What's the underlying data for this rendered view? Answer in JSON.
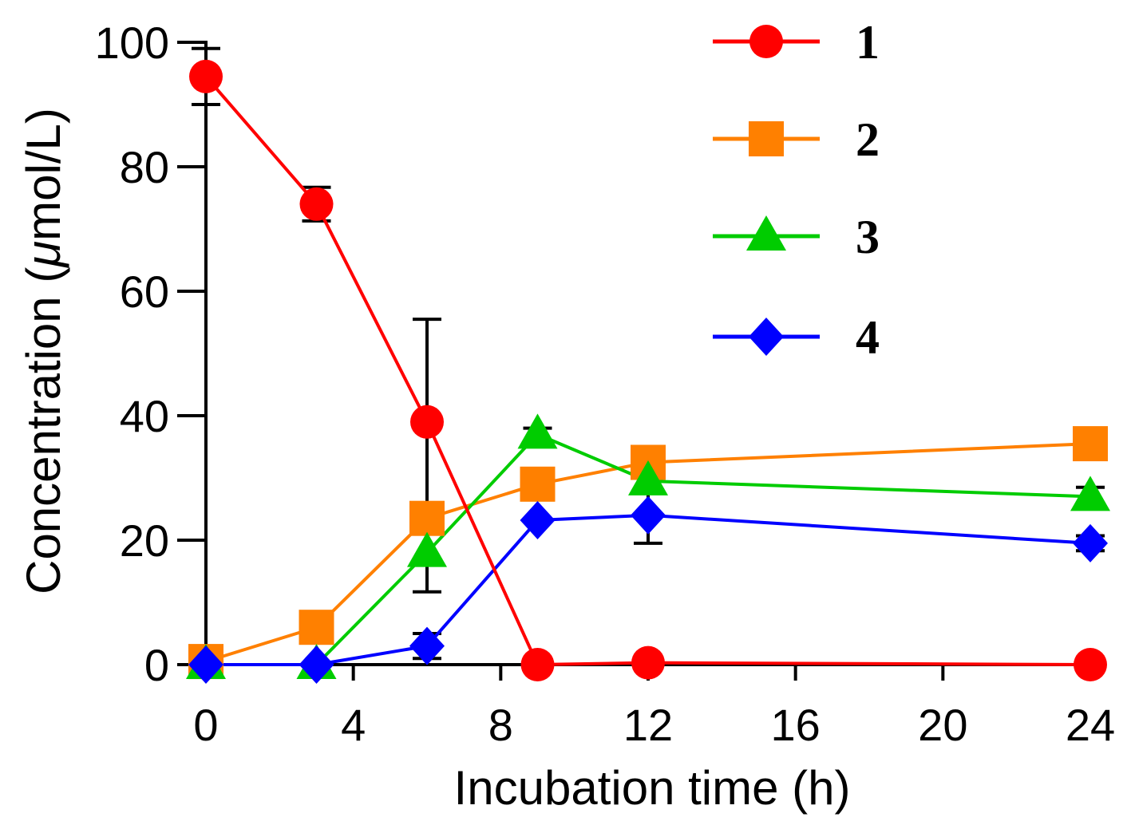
{
  "chart_data": {
    "type": "line",
    "title": "",
    "xlabel": "Incubation time (h)",
    "ylabel_parts": [
      "Concentration (",
      "μ",
      "mol/L)"
    ],
    "xlim": [
      0,
      24
    ],
    "ylim": [
      0,
      100
    ],
    "xticks": [
      0,
      4,
      8,
      12,
      16,
      20,
      24
    ],
    "yticks": [
      0,
      20,
      40,
      60,
      80,
      100
    ],
    "grid": false,
    "legend_position": "top-right",
    "series": [
      {
        "name": "1",
        "color": "#ff0000",
        "marker": "circle",
        "x": [
          0,
          3,
          6,
          9,
          12,
          24
        ],
        "y": [
          94.5,
          74,
          39,
          0,
          0.3,
          0
        ],
        "err": [
          4.5,
          2.7,
          16.5,
          0,
          0,
          0
        ]
      },
      {
        "name": "2",
        "color": "#ff8000",
        "marker": "square",
        "x": [
          0,
          3,
          6,
          9,
          12,
          24
        ],
        "y": [
          0.5,
          6,
          23.5,
          29,
          32.5,
          35.5
        ],
        "err": [
          0,
          0,
          0,
          0,
          0,
          0
        ]
      },
      {
        "name": "3",
        "color": "#00cc00",
        "marker": "triangle",
        "x": [
          0,
          3,
          6,
          9,
          12,
          24
        ],
        "y": [
          0,
          0,
          18,
          37,
          29.5,
          27
        ],
        "err": [
          0,
          0,
          6.3,
          1,
          1.2,
          1.5
        ]
      },
      {
        "name": "4",
        "color": "#0000ff",
        "marker": "diamond",
        "x": [
          0,
          3,
          6,
          9,
          12,
          24
        ],
        "y": [
          0,
          0,
          3,
          23.2,
          24,
          19.5
        ],
        "err": [
          0,
          0,
          2,
          0,
          4.5,
          1.2
        ]
      }
    ]
  }
}
